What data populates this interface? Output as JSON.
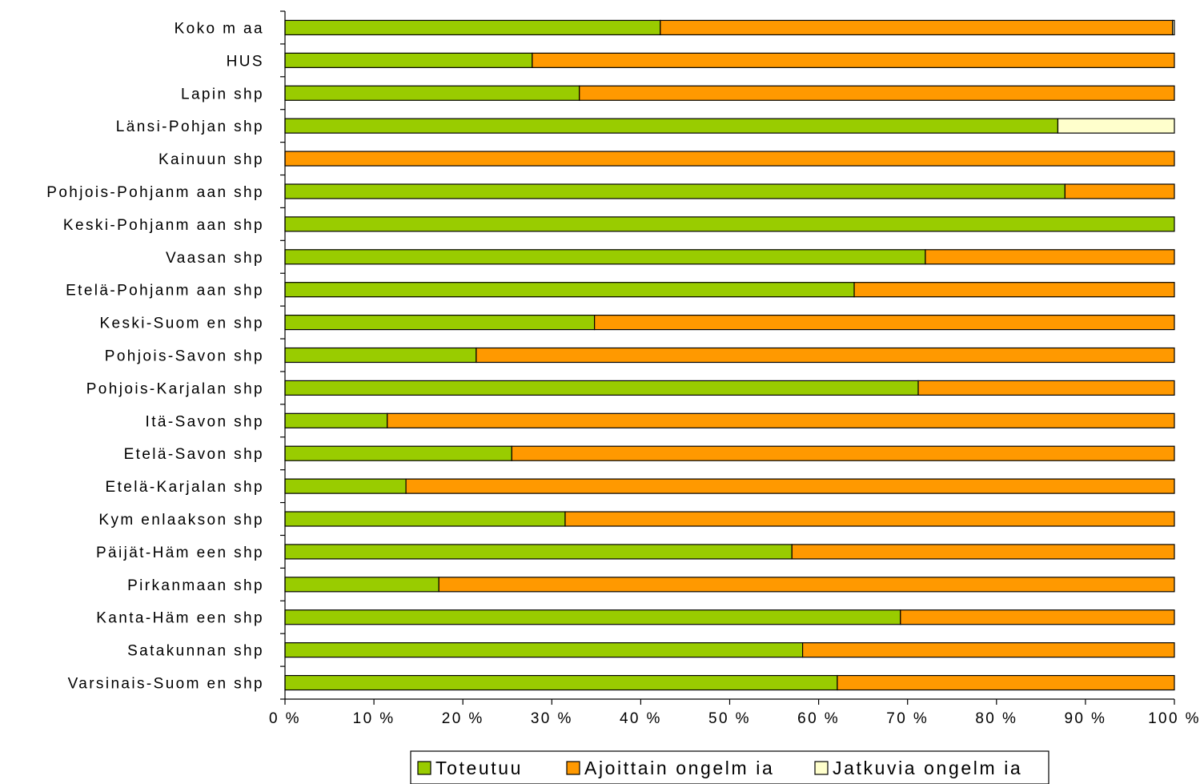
{
  "chart_data": {
    "type": "bar",
    "orientation": "horizontal",
    "stacked": "percent",
    "categories": [
      "Koko m aa",
      "HUS",
      "Lapin shp",
      "Länsi-Pohjan shp",
      "Kainuun shp",
      "Pohjois-Pohjanm aan shp",
      "Keski-Pohjanm aan shp",
      "Vaasan shp",
      "Etelä-Pohjanm aan shp",
      "Keski-Suom en shp",
      "Pohjois-Savon shp",
      "Pohjois-Karjalan shp",
      "Itä-Savon shp",
      "Etelä-Savon shp",
      "Etelä-Karjalan shp",
      "Kym enlaakson shp",
      "Päijät-Häm een shp",
      "Pirkanmaan shp",
      "Kanta-Häm een shp",
      "Satakunnan shp",
      "Varsinais-Suom en shp"
    ],
    "series": [
      {
        "name": "Toteutuu",
        "color": "#99CC00",
        "values": [
          42.2,
          27.8,
          33.1,
          86.9,
          0,
          87.7,
          100,
          72,
          64,
          34.8,
          21.5,
          71.2,
          11.5,
          25.5,
          13.6,
          31.5,
          57,
          17.3,
          69.2,
          58.2,
          62.1
        ]
      },
      {
        "name": "Ajoittain ongelm ia",
        "color": "#FF9900",
        "values": [
          57.6,
          72.2,
          66.9,
          0,
          100,
          12.3,
          0,
          28,
          36,
          65.2,
          78.5,
          28.8,
          88.5,
          74.5,
          86.4,
          68.5,
          43,
          82.7,
          30.8,
          41.8,
          37.9
        ]
      },
      {
        "name": "Jatkuvia ongelm ia",
        "color": "#FFFFCC",
        "values": [
          0.2,
          0,
          0,
          13.1,
          0,
          0,
          0,
          0,
          0,
          0,
          0,
          0,
          0,
          0,
          0,
          0,
          0,
          0,
          0,
          0,
          0
        ]
      }
    ],
    "xlim": [
      0,
      100
    ],
    "x_ticks": [
      "0 %",
      "10 %",
      "20 %",
      "30 %",
      "40 %",
      "50 %",
      "60 %",
      "70 %",
      "80 %",
      "90 %",
      "100 %"
    ],
    "grid": false,
    "legend_position": "bottom"
  }
}
